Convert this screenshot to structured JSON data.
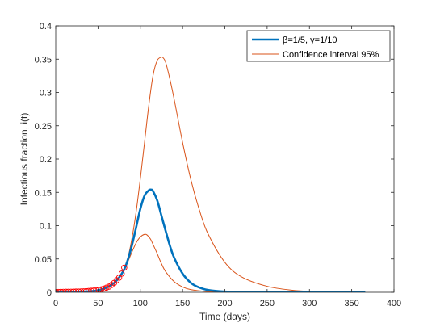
{
  "chart_data": {
    "type": "line",
    "xlabel": "Time (days)",
    "ylabel": "Infectious fraction, i(t)",
    "xlim": [
      0,
      400
    ],
    "ylim": [
      0,
      0.4
    ],
    "x_ticks": [
      0,
      50,
      100,
      150,
      200,
      250,
      300,
      350,
      400
    ],
    "y_ticks": [
      0,
      0.05,
      0.1,
      0.15,
      0.2,
      0.25,
      0.3,
      0.35,
      0.4
    ],
    "x_tick_labels": [
      "0",
      "50",
      "100",
      "150",
      "200",
      "250",
      "300",
      "350",
      "400"
    ],
    "y_tick_labels": [
      "0",
      "0.05",
      "0.1",
      "0.15",
      "0.2",
      "0.25",
      "0.3",
      "0.35",
      "0.4"
    ],
    "grid": false,
    "legend_position": "top-right",
    "legend": [
      {
        "label": "β=1/5, γ=1/10",
        "color": "#0072BD"
      },
      {
        "label": "Confidence interval 95%",
        "color": "#D95319"
      }
    ],
    "series": [
      {
        "color": "#0072BD",
        "x": [
          0,
          20,
          40,
          50,
          60,
          70,
          80,
          85,
          90,
          95,
          100,
          105,
          110,
          113,
          115,
          120,
          125,
          130,
          135,
          140,
          150,
          160,
          170,
          180,
          200,
          220,
          250,
          300,
          365
        ],
        "y": [
          0.0005,
          0.0008,
          0.0015,
          0.003,
          0.007,
          0.015,
          0.032,
          0.048,
          0.07,
          0.097,
          0.125,
          0.145,
          0.153,
          0.154,
          0.152,
          0.138,
          0.115,
          0.092,
          0.07,
          0.052,
          0.028,
          0.014,
          0.007,
          0.0035,
          0.001,
          0.0003,
          0.0001,
          0,
          0
        ]
      },
      {
        "color": "#D95319",
        "x": [
          0,
          20,
          40,
          50,
          60,
          70,
          80,
          85,
          90,
          95,
          100,
          105,
          108,
          112,
          115,
          120,
          125,
          130,
          140,
          150,
          160,
          180,
          200,
          220,
          250,
          300,
          365
        ],
        "y": [
          0.0005,
          0.0008,
          0.0015,
          0.003,
          0.007,
          0.015,
          0.032,
          0.045,
          0.06,
          0.074,
          0.083,
          0.087,
          0.086,
          0.08,
          0.072,
          0.058,
          0.043,
          0.031,
          0.016,
          0.008,
          0.004,
          0.001,
          0.0002,
          0,
          0,
          0,
          0
        ]
      },
      {
        "color": "#D95319",
        "x": [
          0,
          20,
          40,
          50,
          60,
          70,
          80,
          85,
          90,
          95,
          100,
          105,
          110,
          115,
          120,
          125,
          127,
          130,
          135,
          140,
          150,
          160,
          170,
          180,
          200,
          220,
          250,
          280,
          300,
          330,
          365
        ],
        "y": [
          0.0005,
          0.0008,
          0.0015,
          0.003,
          0.007,
          0.015,
          0.032,
          0.05,
          0.08,
          0.12,
          0.17,
          0.225,
          0.28,
          0.325,
          0.348,
          0.353,
          0.352,
          0.345,
          0.32,
          0.29,
          0.225,
          0.168,
          0.123,
          0.088,
          0.045,
          0.023,
          0.009,
          0.003,
          0.0015,
          0.0005,
          0.0002
        ]
      }
    ],
    "markers": {
      "style": "circle",
      "color": "#FF0000",
      "x": [
        0,
        3,
        6,
        9,
        12,
        15,
        18,
        21,
        24,
        27,
        30,
        33,
        36,
        39,
        42,
        45,
        48,
        51,
        54,
        57,
        60,
        63,
        66,
        69,
        72,
        75,
        78,
        81
      ],
      "y": [
        0.0005,
        0.0005,
        0.0006,
        0.0006,
        0.0007,
        0.0007,
        0.0008,
        0.0009,
        0.001,
        0.0011,
        0.0012,
        0.0014,
        0.0016,
        0.0019,
        0.0022,
        0.0026,
        0.003,
        0.0036,
        0.0044,
        0.0055,
        0.007,
        0.0085,
        0.011,
        0.014,
        0.018,
        0.022,
        0.028,
        0.037
      ]
    }
  }
}
